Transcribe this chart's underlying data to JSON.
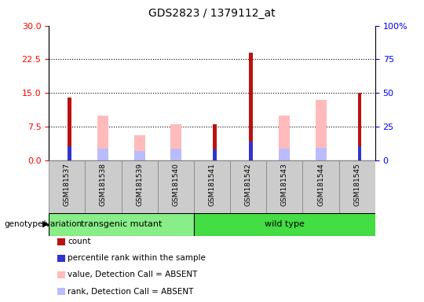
{
  "title": "GDS2823 / 1379112_at",
  "samples": [
    "GSM181537",
    "GSM181538",
    "GSM181539",
    "GSM181540",
    "GSM181541",
    "GSM181542",
    "GSM181543",
    "GSM181544",
    "GSM181545"
  ],
  "group_labels": [
    "transgenic mutant",
    "wild type"
  ],
  "transgenic_indices": [
    0,
    1,
    2,
    3
  ],
  "wildtype_indices": [
    4,
    5,
    6,
    7,
    8
  ],
  "count_values": [
    14.0,
    0.0,
    0.0,
    0.0,
    8.0,
    24.0,
    0.0,
    0.0,
    15.0
  ],
  "rank_values": [
    10.5,
    0.0,
    0.0,
    0.0,
    8.0,
    13.5,
    0.0,
    0.0,
    10.5
  ],
  "absent_value": [
    0.0,
    10.0,
    5.5,
    8.0,
    0.0,
    0.0,
    10.0,
    13.5,
    0.0
  ],
  "absent_rank": [
    0.0,
    8.5,
    7.0,
    8.5,
    0.0,
    0.0,
    8.5,
    9.0,
    0.0
  ],
  "left_ylim": [
    0,
    30
  ],
  "right_ylim": [
    0,
    100
  ],
  "left_yticks": [
    0,
    7.5,
    15,
    22.5,
    30
  ],
  "right_yticks": [
    0,
    25,
    50,
    75,
    100
  ],
  "hlines": [
    7.5,
    15,
    22.5
  ],
  "count_color": "#bb1111",
  "rank_color": "#3333cc",
  "absent_value_color": "#ffbbbb",
  "absent_rank_color": "#bbbbff",
  "transgenic_color": "#88ee88",
  "wildtype_color": "#44dd44",
  "sample_bg_color": "#cccccc",
  "legend_items": [
    {
      "color": "#bb1111",
      "label": "count"
    },
    {
      "color": "#3333cc",
      "label": "percentile rank within the sample"
    },
    {
      "color": "#ffbbbb",
      "label": "value, Detection Call = ABSENT"
    },
    {
      "color": "#bbbbff",
      "label": "rank, Detection Call = ABSENT"
    }
  ]
}
